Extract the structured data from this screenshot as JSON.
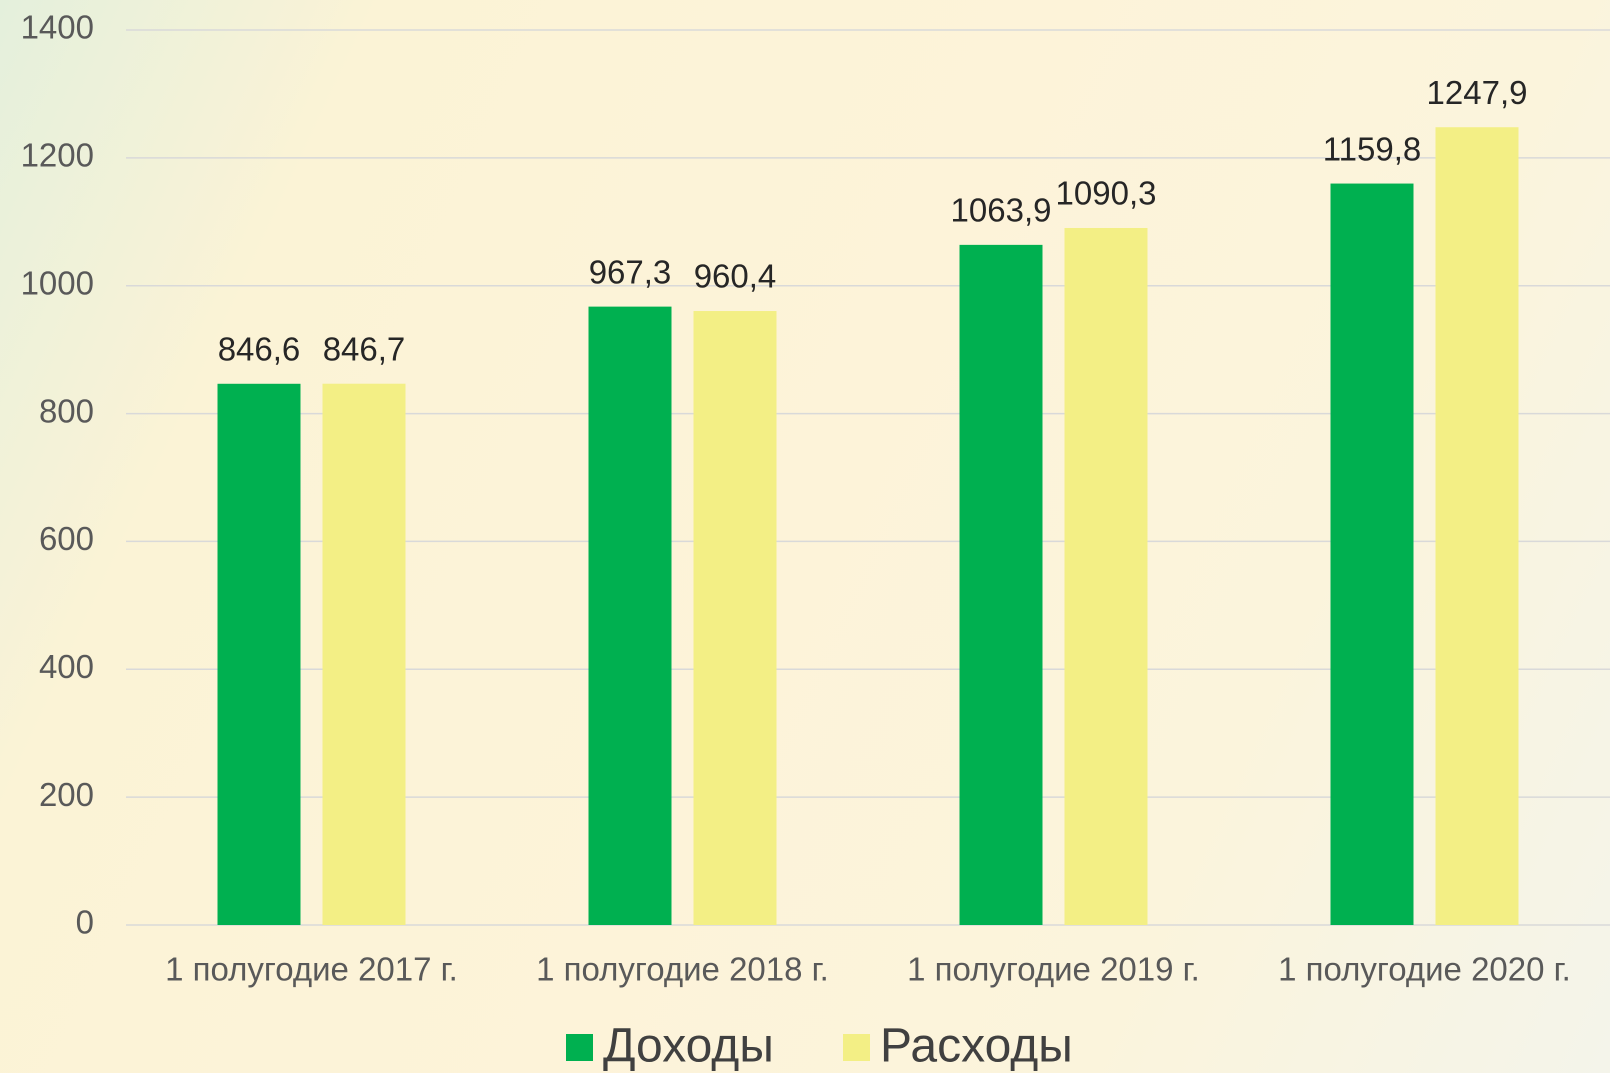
{
  "chart_data": {
    "type": "bar",
    "categories": [
      "1 полугодие 2017 г.",
      "1 полугодие 2018 г.",
      "1 полугодие 2019 г.",
      "1 полугодие 2020 г."
    ],
    "series": [
      {
        "name": "Доходы",
        "color": "#00b050",
        "values": [
          846.6,
          967.3,
          1063.9,
          1159.8
        ],
        "value_labels": [
          "846,6",
          "967,3",
          "1063,9",
          "1159,8"
        ]
      },
      {
        "name": "Расходы",
        "color": "#f3ef85",
        "values": [
          846.7,
          960.4,
          1090.3,
          1247.9
        ],
        "value_labels": [
          "846,7",
          "960,4",
          "1090,3",
          "1247,9"
        ]
      }
    ],
    "ylim": [
      0,
      1400
    ],
    "yticks": [
      0,
      200,
      400,
      600,
      800,
      1000,
      1200,
      1400
    ],
    "grid": true,
    "legend": "bottom"
  }
}
